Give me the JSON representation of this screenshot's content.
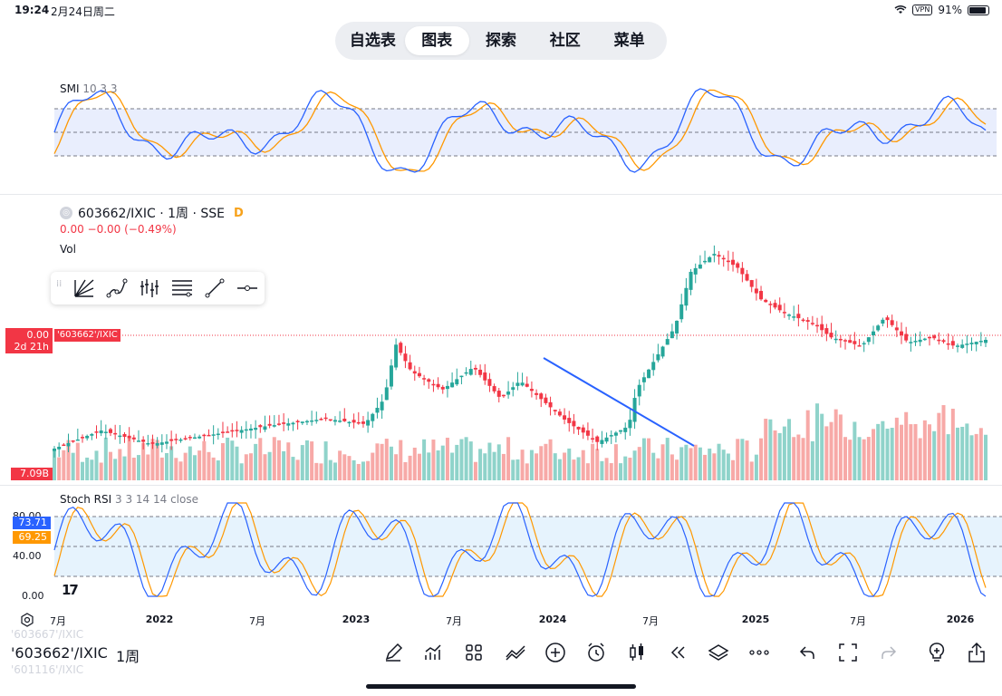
{
  "status": {
    "time": "19:24",
    "date": "2月24日周二",
    "vpn": "VPN",
    "battery": "91%",
    "battery_level": 0.91
  },
  "nav": {
    "tabs": [
      {
        "label": "自选表",
        "active": false
      },
      {
        "label": "图表",
        "active": true
      },
      {
        "label": "探索",
        "active": false
      },
      {
        "label": "社区",
        "active": false
      },
      {
        "label": "菜单",
        "active": false
      }
    ]
  },
  "smi": {
    "name": "SMI",
    "params": "10 3 3"
  },
  "main_chart": {
    "symbol_title": "603662/IXIC · 1周 · SSE",
    "source_badge": "D",
    "values_line": "0.00  −0.00 (−0.49%)",
    "vol_label": "Vol",
    "price_tag": "0.00",
    "countdown": "2d 21h",
    "symbol_tag": "'603662'/IXIC",
    "volume_tag": "7.09B"
  },
  "stoch_rsi": {
    "name": "Stoch RSI",
    "params": "3 3 14 14 close",
    "axis_80": "80.00",
    "axis_40": "40.00",
    "axis_0": "0.00",
    "k_value": "73.71",
    "d_value": "69.25"
  },
  "x_axis": {
    "labels": [
      "7月",
      "2022",
      "7月",
      "2023",
      "7月",
      "2024",
      "7月",
      "2025",
      "7月",
      "2026"
    ]
  },
  "bottom": {
    "symbol": "'603662'/IXIC",
    "symbol_prev": "'603667'/IXIC",
    "symbol_next": "'601116'/IXIC",
    "interval": "1周"
  },
  "colors": {
    "up": "#26a69a",
    "down": "#f23645",
    "k_line": "#2962ff",
    "d_line": "#ff9800",
    "trendline": "#2962ff"
  },
  "icons": {
    "draw_tools": [
      "pitchfork-icon",
      "gann-icon",
      "bar-pattern-icon",
      "fib-icon",
      "parallel-channel-icon",
      "trendline-icon",
      "horizontal-ray-icon"
    ],
    "bottom_tools": [
      "pencil-icon",
      "indicators-icon",
      "layout-grid-icon",
      "compare-icon",
      "add-icon",
      "alert-icon",
      "chart-type-icon",
      "replay-icon",
      "layers-icon",
      "more-icon",
      "undo-icon",
      "fullscreen-icon",
      "redo-icon",
      "ideas-icon",
      "share-icon"
    ]
  }
}
